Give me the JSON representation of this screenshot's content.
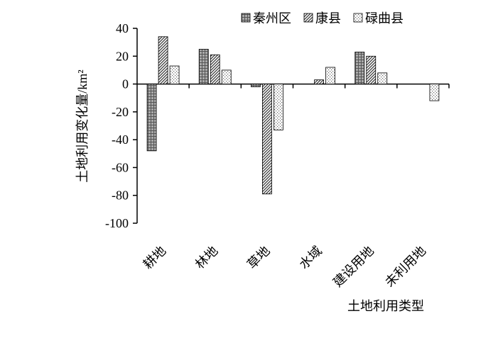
{
  "chart_data": {
    "type": "bar",
    "x_label": "土地利用类型",
    "y_label": "土地利用变化量/km²",
    "categories": [
      "耕地",
      "林地",
      "草地",
      "水域",
      "建设用地",
      "未利用地"
    ],
    "series": [
      {
        "name": "秦州区",
        "color": "#555555",
        "pattern": "grid",
        "values": [
          -48,
          25,
          -2,
          0,
          23,
          0
        ]
      },
      {
        "name": "康县",
        "color": "#333333",
        "pattern": "diagonal",
        "values": [
          34,
          21,
          -79,
          3,
          20,
          0
        ]
      },
      {
        "name": "碌曲县",
        "color": "#666666",
        "pattern": "dots",
        "values": [
          13,
          10,
          -33,
          12,
          8,
          -12
        ]
      }
    ],
    "ylim": [
      -100,
      40
    ],
    "yticks": [
      -100,
      -80,
      -60,
      -40,
      -20,
      0,
      20,
      40
    ]
  }
}
